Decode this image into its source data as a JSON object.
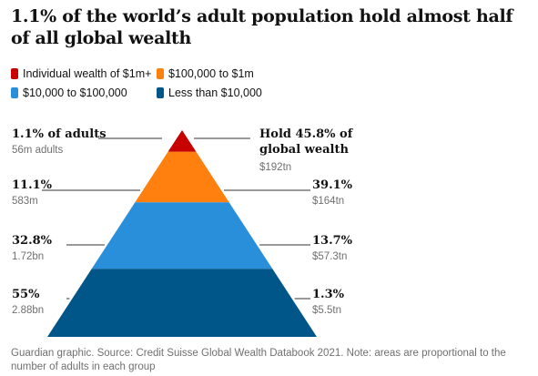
{
  "chart_data": {
    "type": "pyramid",
    "title": "1.1% of the world’s adult population hold almost half of all global wealth",
    "legend": [
      {
        "label": "Individual wealth of $1m+",
        "color": "#c70000"
      },
      {
        "label": "$100,000 to $1m",
        "color": "#ff7f0f"
      },
      {
        "label": "$10,000 to $100,000",
        "color": "#2a8fdb"
      },
      {
        "label": "Less than $10,000",
        "color": "#005689"
      }
    ],
    "tiers": [
      {
        "group": "Individual wealth of $1m+",
        "adults_pct": 1.1,
        "adults_pct_label": "1.1% of adults",
        "adults_count": "56m adults",
        "wealth_pct": 45.8,
        "wealth_pct_label": "Hold 45.8% of global wealth",
        "wealth_value": "$192tn",
        "color": "#c70000"
      },
      {
        "group": "$100,000 to $1m",
        "adults_pct": 11.1,
        "adults_pct_label": "11.1%",
        "adults_count": "583m",
        "wealth_pct": 39.1,
        "wealth_pct_label": "39.1%",
        "wealth_value": "$164tn",
        "color": "#ff7f0f"
      },
      {
        "group": "$10,000 to $100,000",
        "adults_pct": 32.8,
        "adults_pct_label": "32.8%",
        "adults_count": "1.72bn",
        "wealth_pct": 13.7,
        "wealth_pct_label": "13.7%",
        "wealth_value": "$57.3tn",
        "color": "#2a8fdb"
      },
      {
        "group": "Less than $10,000",
        "adults_pct": 55,
        "adults_pct_label": "55%",
        "adults_count": "2.88bn",
        "wealth_pct": 1.3,
        "wealth_pct_label": "1.3%",
        "wealth_value": "$5.5tn",
        "color": "#005689"
      }
    ]
  },
  "footer": "Guardian graphic. Source: Credit Suisse Global Wealth Databook 2021. Note: areas are proportional to the number of adults in each group"
}
